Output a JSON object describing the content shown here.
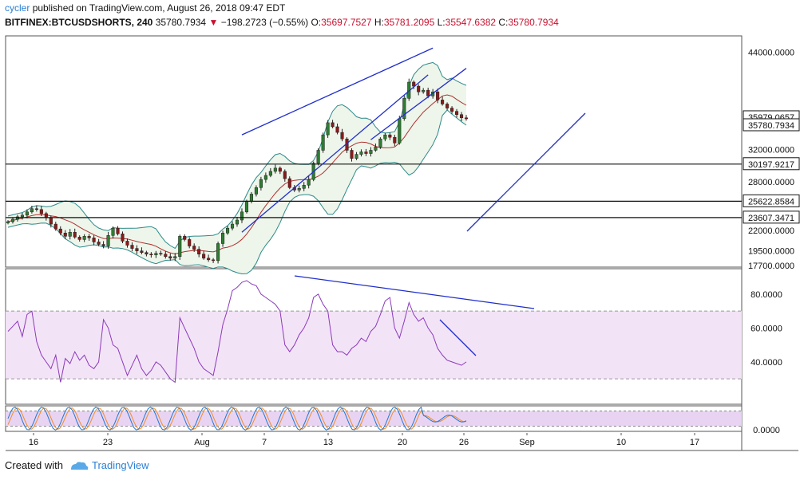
{
  "header": {
    "username": "cycler",
    "published_text": "published on TradingView.com, August 26, 2018 09:47 EDT",
    "symbol": "BITFINEX:BTCUSDSHORTS, 240",
    "last_price": "35780.7934",
    "change": "−198.2723 (−0.55%)",
    "ohlc_labels": {
      "o": "O:",
      "h": "H:",
      "l": "L:",
      "c": "C:"
    },
    "open": "35697.7527",
    "high": "35781.2095",
    "low": "35547.6382",
    "close": "35780.7934"
  },
  "footer": {
    "created_with": "Created with",
    "brand": "TradingView"
  },
  "colors": {
    "up": "#2e7d32",
    "down": "#8b1a1a",
    "bollinger": "#2b8a8a",
    "bollinger_fill": "#eef5ea",
    "basis": "#b03030",
    "trendline": "#1f2ecc",
    "rsi": "#8a3ab9",
    "rsi_band": "#f3e3f7",
    "stoch_k": "#1f77d4",
    "stoch_d": "#f28c28",
    "stoch_band": "#e8d4f2"
  },
  "chart_data": {
    "type": "candlestick",
    "x_tick_labels": [
      "16",
      "23",
      "Aug",
      "7",
      "13",
      "20",
      "26",
      "Sep",
      "10",
      "17"
    ],
    "price_axis": {
      "tick_labels": [
        "44000.0000",
        "32000.0000",
        "28000.0000",
        "22000.0000",
        "19500.0000",
        "17700.0000"
      ],
      "price_labels": [
        "35979.0657",
        "35780.7934",
        "30197.9217",
        "25622.8584",
        "23607.3471"
      ],
      "range": [
        17500,
        46000
      ]
    },
    "horizontal_levels": [
      30197.9217,
      25622.8584,
      23607.3471
    ],
    "closes": [
      23100,
      23400,
      23700,
      23900,
      24300,
      24700,
      24600,
      24100,
      23600,
      22800,
      22200,
      21700,
      21300,
      21800,
      21200,
      20900,
      21300,
      21100,
      20600,
      20300,
      20100,
      21400,
      22300,
      21600,
      20700,
      20200,
      19800,
      19500,
      19300,
      19100,
      19000,
      19200,
      19100,
      18800,
      18600,
      18800,
      21300,
      20900,
      20100,
      19700,
      19100,
      18600,
      18400,
      18300,
      20400,
      21700,
      22300,
      22800,
      23300,
      24300,
      25600,
      26500,
      27300,
      28300,
      28800,
      29300,
      29700,
      29300,
      28400,
      27300,
      27000,
      27200,
      27600,
      28300,
      30300,
      31900,
      33800,
      35300,
      34800,
      34100,
      33300,
      31900,
      30900,
      31400,
      31700,
      31500,
      31900,
      32300,
      33300,
      33800,
      33500,
      32800,
      35800,
      38300,
      40300,
      39800,
      39100,
      39300,
      38600,
      39100,
      38100,
      37600,
      37100,
      36700,
      36300,
      35900,
      35780
    ],
    "rsi": {
      "tick_labels": [
        "80.0000",
        "60.0000",
        "40.0000"
      ],
      "range": [
        15,
        95
      ],
      "upper_band": 70,
      "lower_band": 30,
      "values": [
        58,
        61,
        64,
        55,
        68,
        70,
        52,
        44,
        40,
        36,
        44,
        28,
        42,
        39,
        46,
        41,
        44,
        38,
        36,
        40,
        65,
        60,
        50,
        48,
        40,
        32,
        38,
        44,
        36,
        32,
        35,
        40,
        38,
        34,
        30,
        28,
        66,
        60,
        54,
        48,
        40,
        36,
        34,
        32,
        46,
        62,
        71,
        82,
        84,
        87,
        88,
        86,
        85,
        80,
        78,
        76,
        74,
        70,
        50,
        46,
        50,
        56,
        60,
        66,
        78,
        80,
        74,
        70,
        50,
        46,
        46,
        44,
        48,
        50,
        54,
        52,
        58,
        61,
        68,
        76,
        78,
        60,
        54,
        64,
        75,
        68,
        64,
        66,
        60,
        56,
        48,
        44,
        41,
        40,
        39,
        38,
        40
      ]
    },
    "stochastic": {
      "tick_labels": [
        "0.0000"
      ],
      "range": [
        0,
        100
      ],
      "upper_band": 80,
      "lower_band": 20
    }
  }
}
